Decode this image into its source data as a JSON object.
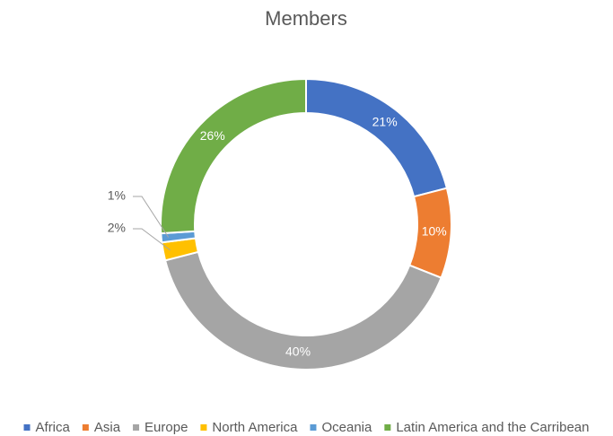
{
  "chart_data": {
    "type": "donut",
    "title": "Members",
    "categories": [
      "Africa",
      "Asia",
      "Europe",
      "North America",
      "Oceania",
      "Latin America and the Carribean"
    ],
    "values": [
      21,
      10,
      40,
      2,
      1,
      26
    ],
    "value_labels": [
      "21%",
      "10%",
      "40%",
      "2%",
      "1%",
      "26%"
    ],
    "colors": [
      "#4472c4",
      "#ed7d31",
      "#a5a5a5",
      "#ffc000",
      "#5b9bd5",
      "#70ad47"
    ],
    "legend": "bottom"
  }
}
